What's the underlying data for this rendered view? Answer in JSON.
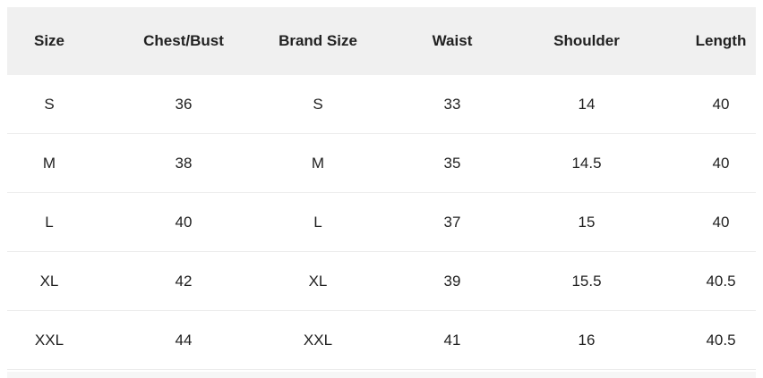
{
  "size_chart": {
    "columns": [
      "Size",
      "Chest/Bust",
      "Brand Size",
      "Waist",
      "Shoulder",
      "Length"
    ],
    "rows": [
      {
        "size": "S",
        "chest_bust": "36",
        "brand_size": "S",
        "waist": "33",
        "shoulder": "14",
        "length": "40"
      },
      {
        "size": "M",
        "chest_bust": "38",
        "brand_size": "M",
        "waist": "35",
        "shoulder": "14.5",
        "length": "40"
      },
      {
        "size": "L",
        "chest_bust": "40",
        "brand_size": "L",
        "waist": "37",
        "shoulder": "15",
        "length": "40"
      },
      {
        "size": "XL",
        "chest_bust": "42",
        "brand_size": "XL",
        "waist": "39",
        "shoulder": "15.5",
        "length": "40.5"
      },
      {
        "size": "XXL",
        "chest_bust": "44",
        "brand_size": "XXL",
        "waist": "41",
        "shoulder": "16",
        "length": "40.5"
      }
    ],
    "cell_order": [
      "size",
      "chest_bust",
      "brand_size",
      "waist",
      "shoulder",
      "length"
    ]
  },
  "colors": {
    "page_bg": "#ffffff",
    "header_bg": "#f0f0f0",
    "divider": "#ececec",
    "text": "#212121",
    "next_section_peek": "#f6f6f6"
  }
}
